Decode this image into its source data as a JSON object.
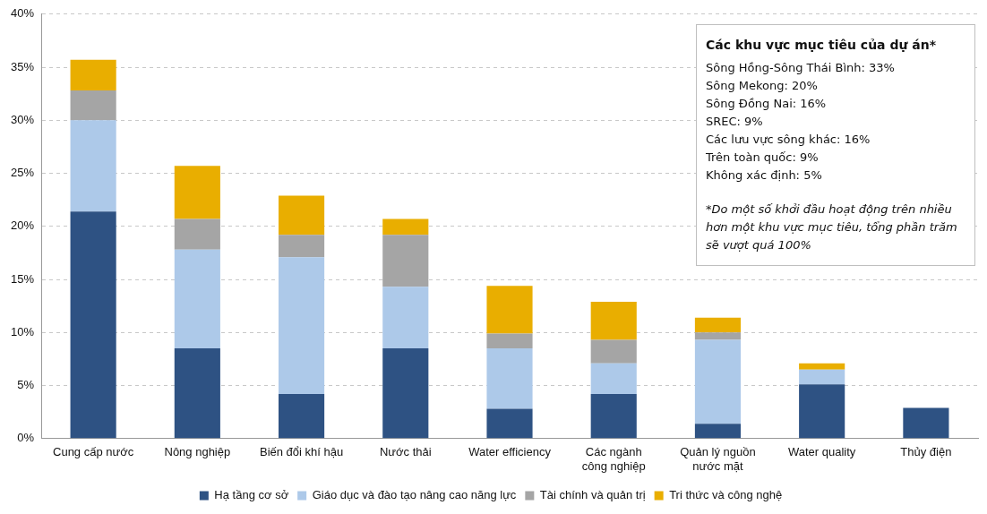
{
  "chart_data": {
    "type": "bar",
    "stacked": true,
    "categories": [
      "Cung cấp nước",
      "Nông nghiệp",
      "Biến đổi khí hậu",
      "Nước thải",
      "Water efficiency",
      "Các ngành công nghiệp",
      "Quản lý nguồn nước mặt",
      "Water quality",
      "Thủy điện"
    ],
    "series": [
      {
        "name": "Hạ tầng cơ sở",
        "color": "#2e5283",
        "values": [
          21.4,
          8.5,
          4.2,
          8.5,
          2.8,
          4.2,
          1.4,
          5.1,
          2.9
        ]
      },
      {
        "name": "Giáo dục và đào tạo nâng cao năng lực",
        "color": "#adc9e9",
        "values": [
          8.6,
          9.3,
          12.9,
          5.8,
          5.7,
          2.9,
          7.9,
          1.4,
          0
        ]
      },
      {
        "name": "Tài chính và quản trị",
        "color": "#a5a5a5",
        "values": [
          2.8,
          2.9,
          2.1,
          4.9,
          1.4,
          2.2,
          0.7,
          0,
          0
        ]
      },
      {
        "name": "Tri thức và công nghệ",
        "color": "#e9ae00",
        "values": [
          2.9,
          5.0,
          3.7,
          1.5,
          4.5,
          3.6,
          1.4,
          0.6,
          0
        ]
      }
    ],
    "ylim": [
      0,
      40
    ],
    "yticks": [
      {
        "value": 0,
        "label": "0%"
      },
      {
        "value": 5,
        "label": "5%"
      },
      {
        "value": 10,
        "label": "10%"
      },
      {
        "value": 15,
        "label": "15%"
      },
      {
        "value": 20,
        "label": "20%"
      },
      {
        "value": 25,
        "label": "25%"
      },
      {
        "value": 30,
        "label": "30%"
      },
      {
        "value": 35,
        "label": "35%"
      },
      {
        "value": 40,
        "label": "40%"
      }
    ],
    "grid": "y",
    "legend": "bottom",
    "annotations": [
      "Các khu vực mục tiêu của dự án*",
      "Sông Hồng-Sông Thái Bình: 33%",
      "Sông Mekong: 20%",
      "Sông Đồng Nai: 16%",
      "SREC: 9%",
      "Các lưu vực sông khác: 16%",
      "Trên toàn quốc: 9%",
      "Không xác định: 5%",
      "*Do một số khởi đầu hoạt động trên nhiều hơn một khu vực mục tiêu, tổng phần trăm sẽ vượt quá 100%"
    ]
  }
}
